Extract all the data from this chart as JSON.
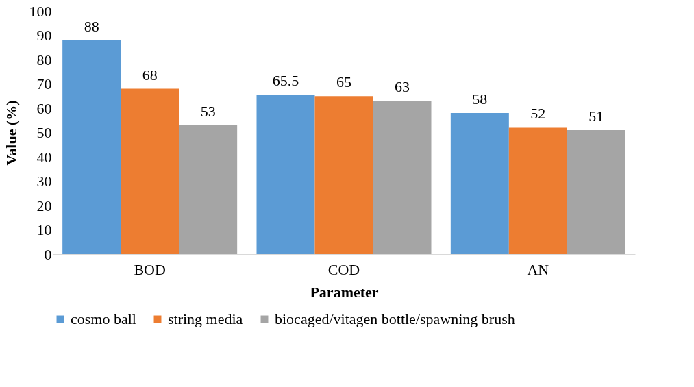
{
  "chart_data": {
    "type": "bar",
    "xlabel": "Parameter",
    "ylabel": "Value (%)",
    "categories": [
      "BOD",
      "COD",
      "AN"
    ],
    "series": [
      {
        "name": "cosmo ball",
        "color": "#5b9bd5",
        "values": [
          88,
          65.5,
          58
        ]
      },
      {
        "name": "string media",
        "color": "#ed7d31",
        "values": [
          68,
          65,
          52
        ]
      },
      {
        "name": "biocaged/vitagen bottle/spawning brush",
        "color": "#a5a5a5",
        "values": [
          53,
          63,
          51
        ]
      }
    ],
    "ylim": [
      0,
      100
    ],
    "yticks": [
      0,
      10,
      20,
      30,
      40,
      50,
      60,
      70,
      80,
      90,
      100
    ],
    "grid": false,
    "legend": "bottom",
    "data_labels": true
  }
}
